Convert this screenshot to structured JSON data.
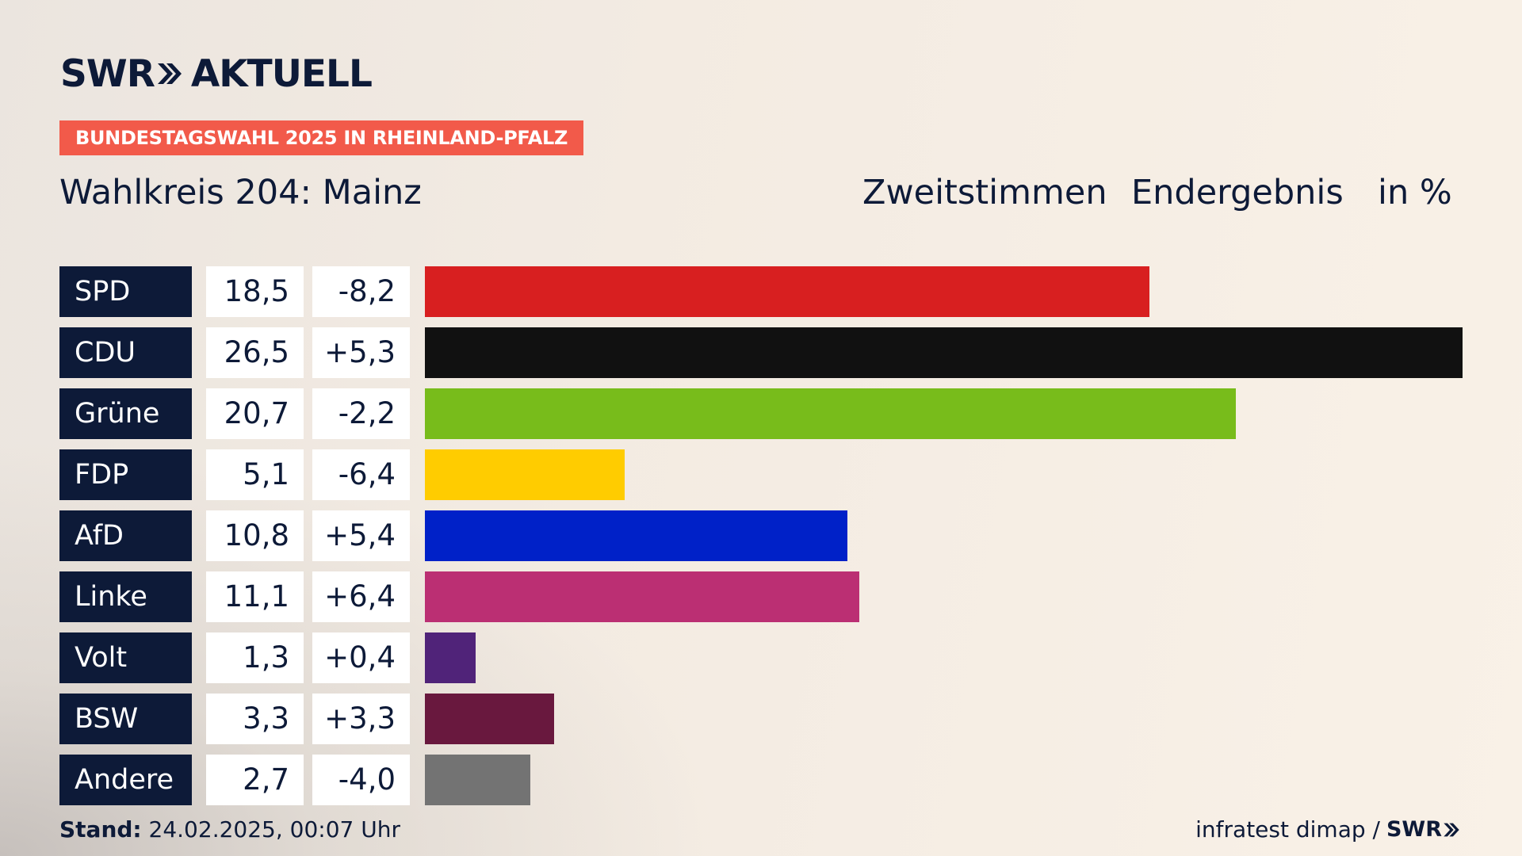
{
  "brand": {
    "logo_text": "SWR",
    "logo_section": "AKTUELL",
    "kicker": "BUNDESTAGSWAHL 2025 IN RHEINLAND-PFALZ"
  },
  "header": {
    "subtitle": "Wahlkreis 204: Mainz",
    "vote_type": "Zweitstimmen",
    "result_type": "Endergebnis",
    "unit": "in %"
  },
  "footer": {
    "stand_label": "Stand:",
    "stand_value": "24.02.2025, 00:07 Uhr",
    "source": "infratest dimap /",
    "source_brand": "SWR"
  },
  "colors": {
    "navy": "#0d1a38",
    "kicker_bg": "#f25a4a"
  },
  "chart_data": {
    "type": "bar",
    "orientation": "horizontal",
    "title": "Wahlkreis 204: Mainz",
    "subtitle": "Zweitstimmen Endergebnis in %",
    "categories": [
      "SPD",
      "CDU",
      "Grüne",
      "FDP",
      "AfD",
      "Linke",
      "Volt",
      "BSW",
      "Andere"
    ],
    "values": [
      18.5,
      26.5,
      20.7,
      5.1,
      10.8,
      11.1,
      1.3,
      3.3,
      2.7
    ],
    "value_labels": [
      "18,5",
      "26,5",
      "20,7",
      "5,1",
      "10,8",
      "11,1",
      "1,3",
      "3,3",
      "2,7"
    ],
    "differences": [
      -8.2,
      5.3,
      -2.2,
      -6.4,
      5.4,
      6.4,
      0.4,
      3.3,
      -4.0
    ],
    "difference_labels": [
      "-8,2",
      "+5,3",
      "-2,2",
      "-6,4",
      "+5,4",
      "+6,4",
      "+0,4",
      "+3,3",
      "-4,0"
    ],
    "colors": [
      "#d81f20",
      "#111111",
      "#78bc1b",
      "#ffcc00",
      "#0021c8",
      "#bb2f73",
      "#502379",
      "#69183e",
      "#737373"
    ],
    "xlim": [
      0,
      26.5
    ],
    "grid": false
  }
}
